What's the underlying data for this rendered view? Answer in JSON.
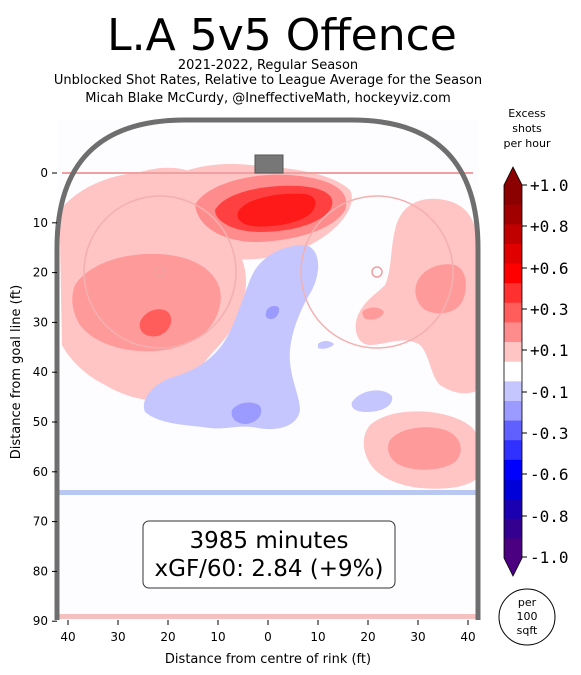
{
  "chart_data": {
    "type": "heatmap",
    "title": "L.A 5v5 Offence",
    "subtitle_lines": [
      "2021-2022, Regular Season",
      "Unblocked Shot Rates, Relative to League Average for the Season",
      "Micah Blake McCurdy, @IneffectiveMath, hockeyviz.com"
    ],
    "xlabel": "Distance from centre of rink (ft)",
    "ylabel": "Distance from goal line (ft)",
    "x_ticks": [
      "40",
      "30",
      "20",
      "10",
      "0",
      "10",
      "20",
      "30",
      "40"
    ],
    "x_tick_values": [
      -40,
      -30,
      -20,
      -10,
      0,
      10,
      20,
      30,
      40
    ],
    "y_ticks": [
      "0",
      "10",
      "20",
      "30",
      "40",
      "50",
      "60",
      "70",
      "80",
      "90"
    ],
    "y_tick_values": [
      0,
      10,
      20,
      30,
      40,
      50,
      60,
      70,
      80,
      90
    ],
    "xlim": [
      -42.5,
      42.5
    ],
    "ylim": [
      -11,
      90
    ],
    "annotation": {
      "minutes": "3985 minutes",
      "xgf": "xGF/60: 2.84 (+9%)"
    },
    "colorbar": {
      "title_lines": [
        "Excess",
        "shots",
        "per hour"
      ],
      "tick_labels": [
        "+1.0",
        "+0.8",
        "+0.6",
        "+0.3",
        "+0.1",
        "-0.1",
        "-0.3",
        "-0.6",
        "-0.8",
        "-1.0"
      ],
      "unit_lines": [
        "per",
        "100",
        "sqft"
      ],
      "levels": [
        {
          "value": 1.0,
          "color": "#8b0000"
        },
        {
          "value": 0.9,
          "color": "#a00000"
        },
        {
          "value": 0.8,
          "color": "#c00000"
        },
        {
          "value": 0.7,
          "color": "#e00000"
        },
        {
          "value": 0.6,
          "color": "#ff0000"
        },
        {
          "value": 0.45,
          "color": "#ff3030"
        },
        {
          "value": 0.3,
          "color": "#ff5c5c"
        },
        {
          "value": 0.2,
          "color": "#ff8c8c"
        },
        {
          "value": 0.1,
          "color": "#ffc4c4"
        },
        {
          "value": 0.0,
          "color": "#ffffff"
        },
        {
          "value": -0.1,
          "color": "#c6c6ff"
        },
        {
          "value": -0.2,
          "color": "#9a9aff"
        },
        {
          "value": -0.3,
          "color": "#6060ff"
        },
        {
          "value": -0.45,
          "color": "#3030ff"
        },
        {
          "value": -0.6,
          "color": "#0000ff"
        },
        {
          "value": -0.7,
          "color": "#0000d8"
        },
        {
          "value": -0.8,
          "color": "#1a00b0"
        },
        {
          "value": -0.9,
          "color": "#330090"
        },
        {
          "value": -1.0,
          "color": "#4b0082"
        }
      ]
    },
    "regions": [
      {
        "name": "left-wing-high",
        "value": 0.1,
        "color": "#ffc4c4"
      },
      {
        "name": "left-faceoff-hot",
        "value": 0.2,
        "color": "#ff9a9a"
      },
      {
        "name": "left-faceoff-core",
        "value": 0.3,
        "color": "#ff6a6a"
      },
      {
        "name": "slot-crease-high",
        "value": 0.2,
        "color": "#ff8c8c"
      },
      {
        "name": "crease-core",
        "value": 0.45,
        "color": "#ff3838"
      },
      {
        "name": "crease-peak",
        "value": 0.6,
        "color": "#ff1a1a"
      },
      {
        "name": "right-wing-high",
        "value": 0.1,
        "color": "#ffc4c4"
      },
      {
        "name": "right-faceoff-hot",
        "value": 0.2,
        "color": "#ff9a9a"
      },
      {
        "name": "right-point-hot",
        "value": 0.2,
        "color": "#ff9a9a"
      },
      {
        "name": "mid-slot-low",
        "value": -0.1,
        "color": "#c6c6ff"
      },
      {
        "name": "mid-slot-lower",
        "value": -0.2,
        "color": "#9a9aff"
      }
    ]
  }
}
